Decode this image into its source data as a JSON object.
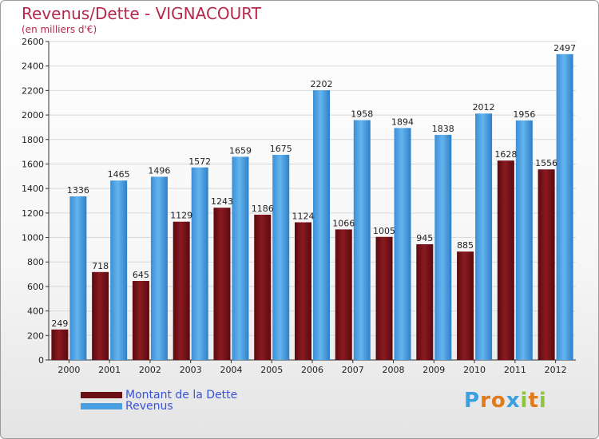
{
  "title": "Revenus/Dette - VIGNACOURT",
  "subtitle": "(en milliers d'€)",
  "colors": {
    "dette": "#6b0f14",
    "revenus": "#4a9fe0",
    "title": "#b5284e",
    "legend_text": "#3a52d8"
  },
  "legend": {
    "dette_label": "Montant de la Dette",
    "revenus_label": "Revenus"
  },
  "logo": {
    "text": "Proxiti",
    "letters": [
      "P",
      "r",
      "o",
      "x",
      "i",
      "t",
      "i"
    ],
    "letter_colors": [
      "#3aa0e0",
      "#e07a1a",
      "#e07a1a",
      "#3aa0e0",
      "#8cc63f",
      "#e07a1a",
      "#8cc63f"
    ]
  },
  "chart_data": {
    "type": "bar",
    "title": "Revenus/Dette - VIGNACOURT",
    "subtitle": "(en milliers d'€)",
    "xlabel": "",
    "ylabel": "",
    "ylim": [
      0,
      2600
    ],
    "yticks": [
      0,
      200,
      400,
      600,
      800,
      1000,
      1200,
      1400,
      1600,
      1800,
      2000,
      2200,
      2400,
      2600
    ],
    "grid": true,
    "legend_position": "bottom-left",
    "categories": [
      "2000",
      "2001",
      "2002",
      "2003",
      "2004",
      "2005",
      "2006",
      "2007",
      "2008",
      "2009",
      "2010",
      "2011",
      "2012"
    ],
    "series": [
      {
        "name": "Montant de la Dette",
        "values": [
          249,
          718,
          645,
          1129,
          1243,
          1186,
          1124,
          1066,
          1005,
          945,
          885,
          1628,
          1556
        ]
      },
      {
        "name": "Revenus",
        "values": [
          1336,
          1465,
          1496,
          1572,
          1659,
          1675,
          2202,
          1958,
          1894,
          1838,
          2012,
          1956,
          2497
        ]
      }
    ]
  }
}
